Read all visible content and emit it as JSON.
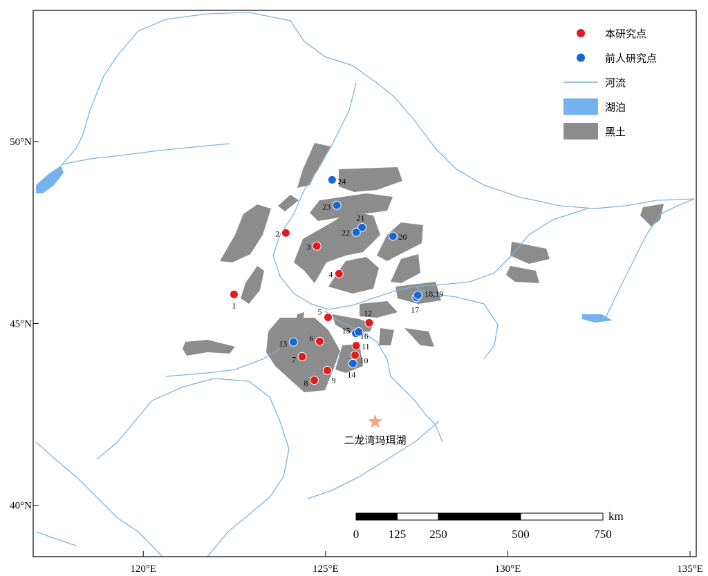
{
  "map": {
    "lonlim": [
      116.98,
      135.17
    ],
    "latlim": [
      38.59,
      53.61
    ],
    "lon_ticks": [
      {
        "value": 120,
        "label": "120°E"
      },
      {
        "value": 125,
        "label": "125°E"
      },
      {
        "value": 130,
        "label": "130°E"
      },
      {
        "value": 135,
        "label": "135°E"
      }
    ],
    "lat_ticks": [
      {
        "value": 50,
        "label": "50°N"
      },
      {
        "value": 45,
        "label": "45°N"
      },
      {
        "value": 40,
        "label": "40°N"
      }
    ],
    "legend": [
      {
        "label": "本研究点",
        "color": "#e31a1c"
      },
      {
        "label": "前人研究点",
        "color": "#1666d6"
      },
      {
        "label": "河流",
        "color": "#7ab4e0"
      },
      {
        "label": "湖泊",
        "color": "#73b2ee"
      },
      {
        "label": "黑土",
        "color": "#8c8c8c"
      }
    ],
    "sites": [
      {
        "label": "1",
        "lon": 122.49,
        "lat": 45.8,
        "color": "#e31a1c"
      },
      {
        "label": "2",
        "lon": 123.91,
        "lat": 47.49,
        "color": "#e31a1c"
      },
      {
        "label": "3",
        "lon": 124.76,
        "lat": 47.13,
        "color": "#e31a1c"
      },
      {
        "label": "4",
        "lon": 125.37,
        "lat": 46.37,
        "color": "#e31a1c"
      },
      {
        "label": "5",
        "lon": 125.07,
        "lat": 45.17,
        "color": "#e31a1c"
      },
      {
        "label": "6",
        "lon": 124.84,
        "lat": 44.51,
        "color": "#e31a1c"
      },
      {
        "label": "7",
        "lon": 124.36,
        "lat": 44.09,
        "color": "#e31a1c"
      },
      {
        "label": "8",
        "lon": 124.69,
        "lat": 43.44,
        "color": "#e31a1c"
      },
      {
        "label": "9",
        "lon": 125.05,
        "lat": 43.71,
        "color": "#e31a1c"
      },
      {
        "label": "10",
        "lon": 125.81,
        "lat": 44.13,
        "color": "#e31a1c"
      },
      {
        "label": "11",
        "lon": 125.84,
        "lat": 44.39,
        "color": "#e31a1c"
      },
      {
        "label": "12",
        "lon": 126.2,
        "lat": 45.02,
        "color": "#e31a1c"
      },
      {
        "label": "13",
        "lon": 124.12,
        "lat": 44.49,
        "color": "#1666d6"
      },
      {
        "label": "14",
        "lon": 125.75,
        "lat": 43.9,
        "color": "#1666d6"
      },
      {
        "label": "15",
        "lon": 125.83,
        "lat": 44.73,
        "color": "#1666d6"
      },
      {
        "label": "16",
        "lon": 125.91,
        "lat": 44.77,
        "color": "#1666d6"
      },
      {
        "label": "17",
        "lon": 127.49,
        "lat": 45.72,
        "color": "#1666d6"
      },
      {
        "label": "18,19",
        "lon": 127.53,
        "lat": 45.78,
        "color": "#1666d6"
      },
      {
        "label": "20",
        "lon": 126.85,
        "lat": 47.4,
        "color": "#1666d6"
      },
      {
        "label": "21",
        "lon": 126.0,
        "lat": 47.64,
        "color": "#1666d6"
      },
      {
        "label": "22",
        "lon": 125.84,
        "lat": 47.51,
        "color": "#1666d6"
      },
      {
        "label": "23",
        "lon": 125.31,
        "lat": 48.25,
        "color": "#1666d6"
      },
      {
        "label": "24",
        "lon": 125.18,
        "lat": 48.95,
        "color": "#1666d6"
      }
    ],
    "lake": {
      "label": "二龙湾玛珥湖",
      "lon": 126.36,
      "lat": 42.3,
      "color": "#f4a582"
    },
    "scale_bar": {
      "ticks": [
        0,
        125,
        250,
        500,
        750
      ],
      "unit": "km"
    }
  }
}
